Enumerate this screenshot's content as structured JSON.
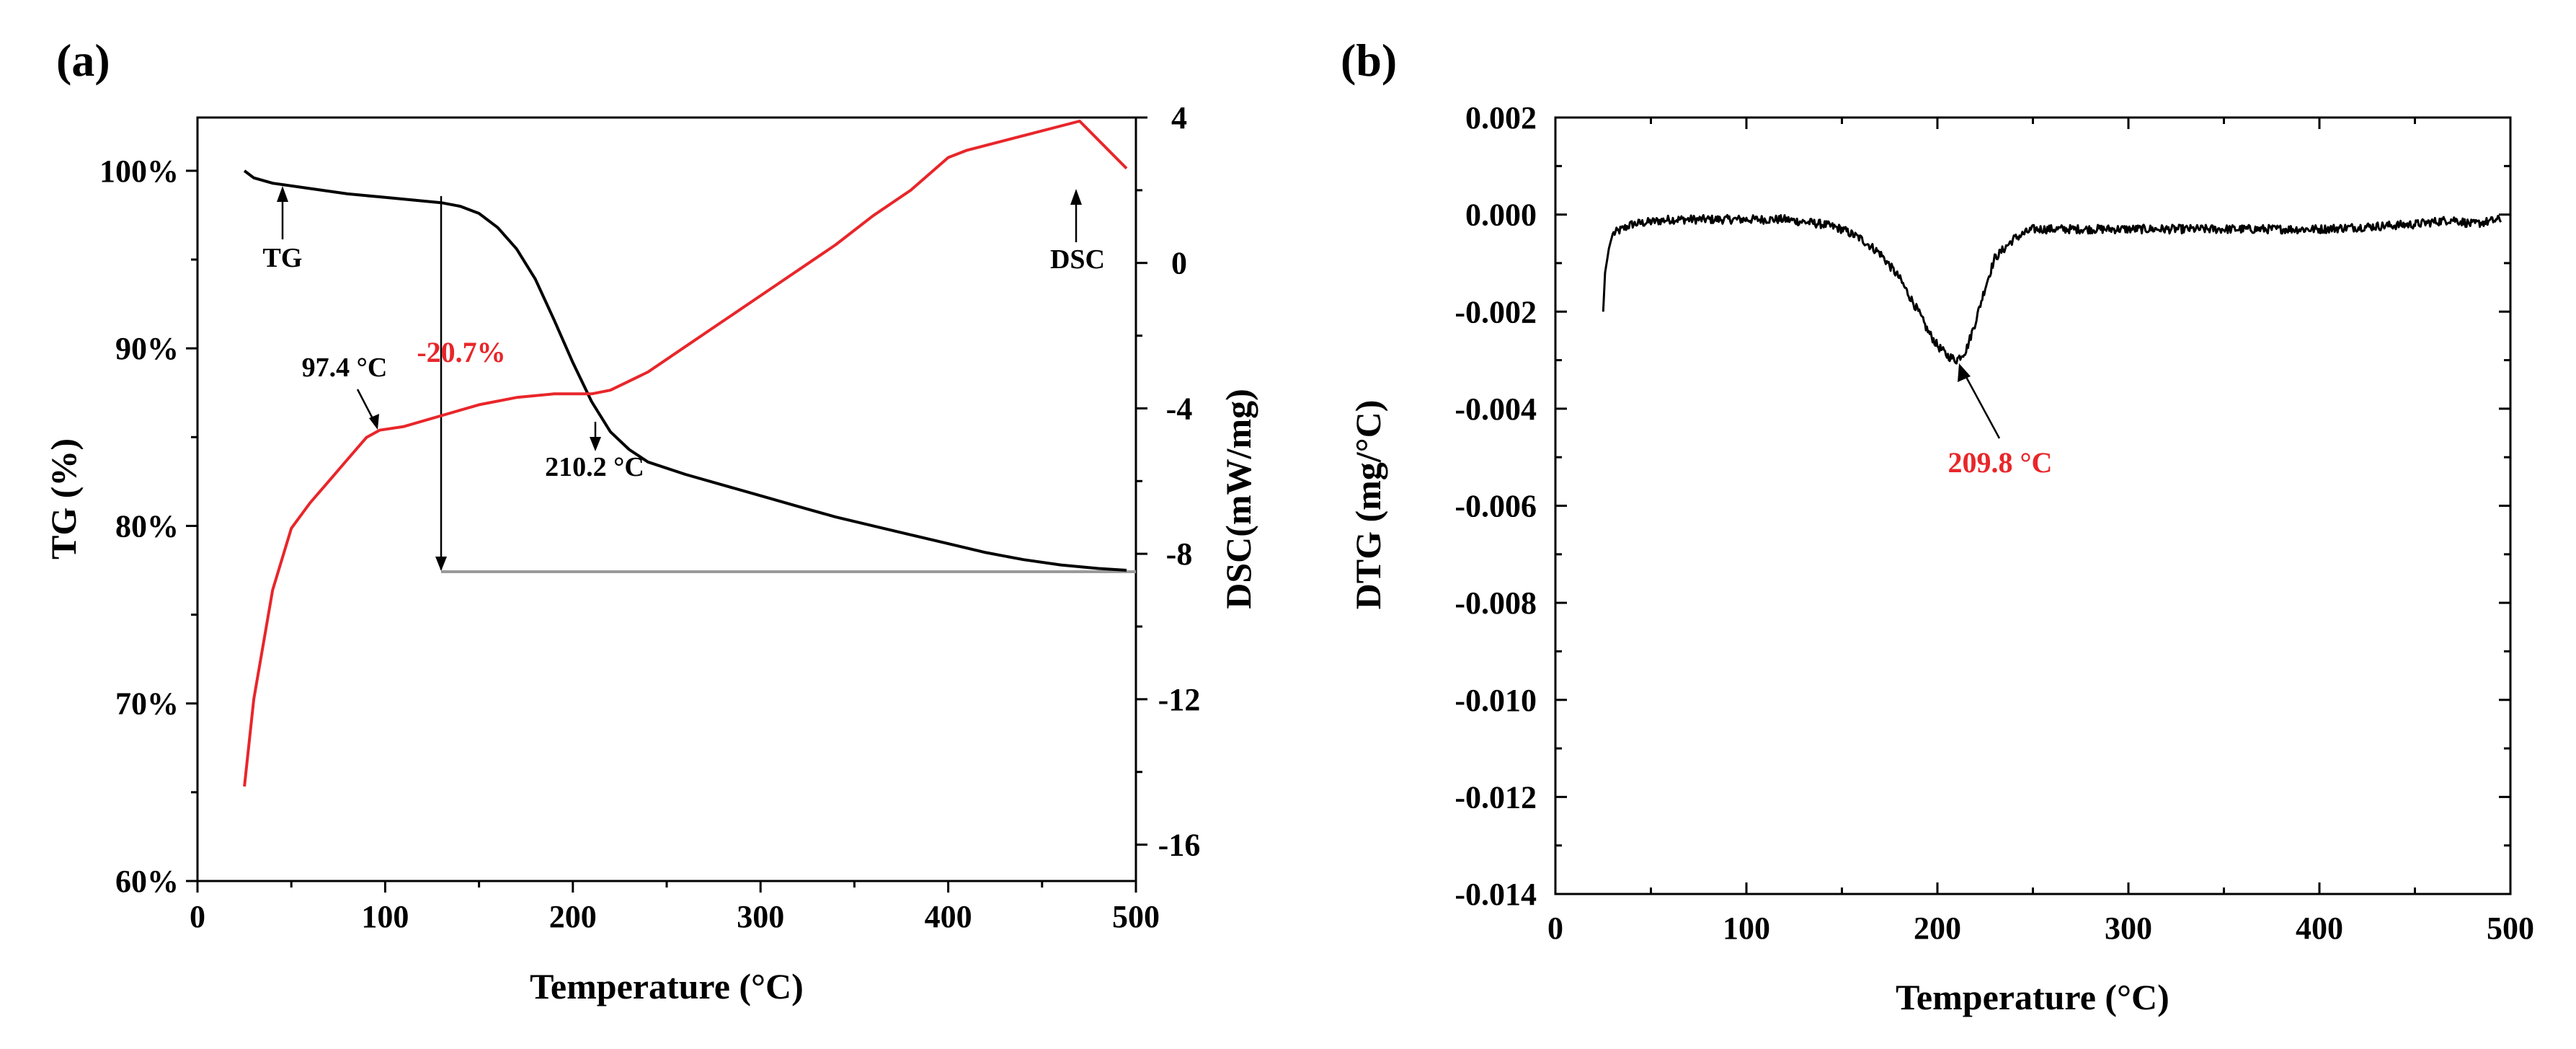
{
  "chart_data": [
    {
      "panel": "(a)",
      "type": "line",
      "xlabel": "Temperature (°C)",
      "ylabel": "TG (%)",
      "y2label": "DSC(mW/mg)",
      "xlim": [
        0,
        500
      ],
      "ylim": [
        60,
        103
      ],
      "y2lim": [
        -17,
        4
      ],
      "xticks": [
        0,
        100,
        200,
        300,
        400,
        500
      ],
      "yticks": [
        60,
        70,
        80,
        90,
        100
      ],
      "ytick_labels": [
        "60%",
        "70%",
        "80%",
        "90%",
        "100%"
      ],
      "y2ticks": [
        4,
        0,
        -4,
        -8,
        -12,
        -16
      ],
      "y2tick_labels": [
        "4",
        "0",
        "-4",
        "-8",
        "-12",
        "-16"
      ],
      "series": [
        {
          "name": "TG",
          "axis": "left",
          "color": "#000000",
          "x": [
            25,
            30,
            40,
            60,
            80,
            100,
            120,
            130,
            140,
            150,
            160,
            170,
            180,
            190,
            200,
            210,
            220,
            230,
            240,
            260,
            280,
            300,
            320,
            340,
            360,
            380,
            400,
            420,
            440,
            460,
            480,
            495
          ],
          "y": [
            100.0,
            99.6,
            99.3,
            99.0,
            98.7,
            98.5,
            98.3,
            98.2,
            98.0,
            97.6,
            96.8,
            95.6,
            93.9,
            91.6,
            89.2,
            87.0,
            85.3,
            84.3,
            83.6,
            82.9,
            82.3,
            81.7,
            81.1,
            80.5,
            80.0,
            79.5,
            79.0,
            78.5,
            78.1,
            77.8,
            77.6,
            77.5
          ]
        },
        {
          "name": "DSC",
          "axis": "right",
          "color": "#e8262a",
          "x": [
            25,
            30,
            40,
            50,
            60,
            70,
            80,
            90,
            97,
            110,
            130,
            150,
            170,
            190,
            210,
            220,
            240,
            260,
            280,
            300,
            320,
            340,
            360,
            380,
            400,
            410,
            440,
            470,
            495
          ],
          "y": [
            -14.4,
            -12.0,
            -9.0,
            -7.3,
            -6.6,
            -6.0,
            -5.4,
            -4.8,
            -4.6,
            -4.5,
            -4.2,
            -3.9,
            -3.7,
            -3.6,
            -3.6,
            -3.5,
            -3.0,
            -2.3,
            -1.6,
            -0.9,
            -0.2,
            0.5,
            1.3,
            2.0,
            2.9,
            3.1,
            3.5,
            3.9,
            2.6
          ]
        }
      ],
      "annotations": {
        "tg_label": "TG",
        "dsc_label": "DSC",
        "peak_dsc": "97.4 °C",
        "peak_tg": "210.2 °C",
        "mass_loss": "-20.7%"
      }
    },
    {
      "panel": "(b)",
      "type": "line",
      "xlabel": "Temperature (°C)",
      "ylabel": "DTG (mg/°C)",
      "xlim": [
        0,
        500
      ],
      "ylim": [
        -0.014,
        0.002
      ],
      "xticks": [
        0,
        100,
        200,
        300,
        400,
        500
      ],
      "yticks": [
        0.002,
        0.0,
        -0.002,
        -0.004,
        -0.006,
        -0.008,
        -0.01,
        -0.012,
        -0.014
      ],
      "ytick_labels": [
        "0.002",
        "0.000",
        "-0.002",
        "-0.004",
        "-0.006",
        "-0.008",
        "-0.010",
        "-0.012",
        "-0.014"
      ],
      "series": [
        {
          "name": "DTG",
          "color": "#000000",
          "x": [
            25,
            26,
            28,
            30,
            35,
            40,
            60,
            80,
            100,
            120,
            140,
            150,
            160,
            170,
            180,
            190,
            195,
            200,
            205,
            209.8,
            215,
            220,
            225,
            230,
            240,
            250,
            270,
            300,
            350,
            400,
            450,
            470,
            480,
            495
          ],
          "y": [
            -0.002,
            -0.0012,
            -0.0007,
            -0.0004,
            -0.0003,
            -0.0002,
            -0.0001,
            -0.0001,
            -0.0001,
            -0.0001,
            -0.0002,
            -0.0003,
            -0.0005,
            -0.0008,
            -0.0013,
            -0.002,
            -0.0024,
            -0.0027,
            -0.0029,
            -0.003,
            -0.0028,
            -0.0022,
            -0.0015,
            -0.0009,
            -0.0005,
            -0.0003,
            -0.0003,
            -0.0003,
            -0.0003,
            -0.0003,
            -0.0002,
            -0.0001,
            -0.0002,
            -0.0001
          ]
        }
      ],
      "annotations": {
        "peak_label": "209.8 °C"
      }
    }
  ]
}
